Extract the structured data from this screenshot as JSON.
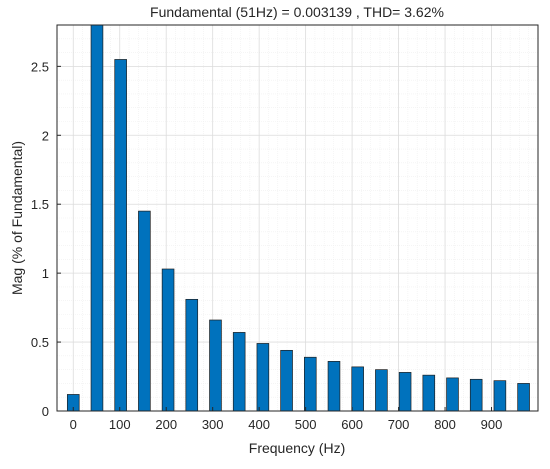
{
  "chart_data": {
    "type": "bar",
    "title": "Fundamental (51Hz) = 0.003139 , THD= 3.62%",
    "xlabel": "Frequency (Hz)",
    "ylabel": "Mag (% of Fundamental)",
    "x": [
      0,
      51,
      102,
      153,
      204,
      255,
      306,
      357,
      408,
      459,
      510,
      561,
      612,
      663,
      714,
      765,
      816,
      867,
      918,
      969
    ],
    "values": [
      0.12,
      2.9,
      2.55,
      1.45,
      1.03,
      0.81,
      0.66,
      0.57,
      0.49,
      0.44,
      0.39,
      0.36,
      0.32,
      0.3,
      0.28,
      0.26,
      0.24,
      0.23,
      0.22,
      0.2
    ],
    "xlim": [
      -35,
      1000
    ],
    "ylim": [
      0,
      2.8
    ],
    "x_ticks": [
      0,
      100,
      200,
      300,
      400,
      500,
      600,
      700,
      800,
      900
    ],
    "y_ticks": [
      0,
      0.5,
      1,
      1.5,
      2,
      2.5
    ],
    "grid": true,
    "minor_grid": true,
    "bar_color": "#0072BD"
  }
}
